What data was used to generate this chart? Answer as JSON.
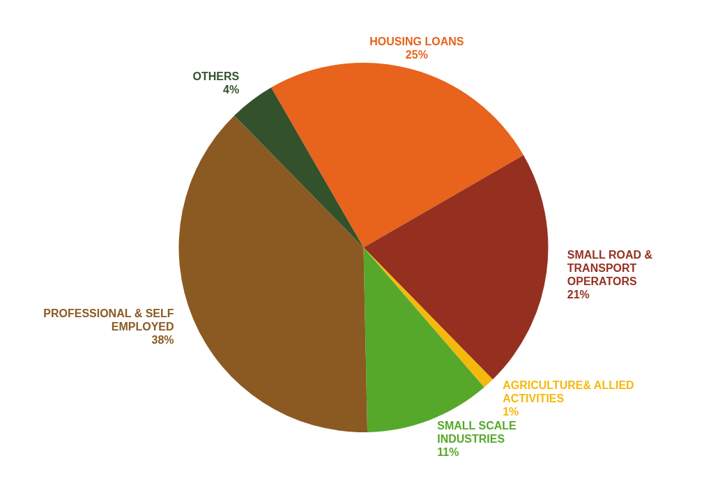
{
  "chart_data": {
    "type": "pie",
    "categories": [
      "HOUSING LOANS",
      "SMALL ROAD & TRANSPORT OPERATORS",
      "AGRICULTURE& ALLIED ACTIVITIES",
      "SMALL SCALE INDUSTRIES",
      "PROFESSIONAL & SELF EMPLOYED",
      "OTHERS"
    ],
    "values": [
      25,
      21,
      1,
      11,
      38,
      4
    ],
    "value_labels": [
      "25%",
      "21%",
      "1%",
      "11%",
      "38%",
      "4%"
    ],
    "colors": [
      "#e8631c",
      "#953020",
      "#f5b90c",
      "#55a82a",
      "#8a5a22",
      "#33512a"
    ],
    "legend": false
  }
}
